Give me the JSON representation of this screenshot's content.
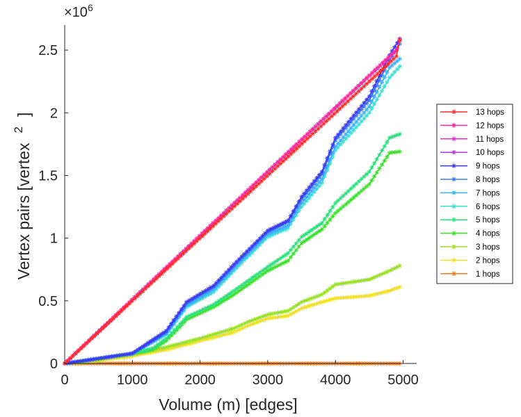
{
  "chart_data": {
    "type": "line",
    "title": "",
    "xlabel": "Volume (m) [edges]",
    "ylabel": "Vertex pairs [vertex",
    "ylabel_superscript": "2",
    "ylabel_close": "]",
    "y_multiplier": "×10",
    "y_multiplier_exponent": "6",
    "xlim": [
      0,
      5200
    ],
    "ylim": [
      0,
      2.7
    ],
    "xticks": [
      0,
      1000,
      2000,
      3000,
      4000,
      5000
    ],
    "xtick_labels": [
      "0",
      "1000",
      "2000",
      "3000",
      "4000",
      "5000"
    ],
    "yticks": [
      0,
      0.5,
      1,
      1.5,
      2,
      2.5
    ],
    "ytick_labels": [
      "0",
      "0.5",
      "1",
      "1.5",
      "2",
      "2.5"
    ],
    "grid": false,
    "legend_position": "outside-right",
    "marker": "asterisk",
    "series": [
      {
        "name": "13 hops",
        "color": "#ff2a2a",
        "points": [
          [
            0,
            0
          ],
          [
            4900,
            2.45
          ],
          [
            4950,
            2.58
          ]
        ]
      },
      {
        "name": "12 hops",
        "color": "#ff2a9a",
        "points": [
          [
            0,
            0
          ],
          [
            4900,
            2.5
          ],
          [
            4950,
            2.58
          ]
        ]
      },
      {
        "name": "11 hops",
        "color": "#ee2ad8",
        "points": [
          [
            0,
            0
          ],
          [
            4900,
            2.5
          ],
          [
            4950,
            2.58
          ]
        ]
      },
      {
        "name": "10 hops",
        "color": "#aa3af0",
        "points": [
          [
            0,
            0
          ],
          [
            4900,
            2.5
          ],
          [
            4950,
            2.58
          ]
        ]
      },
      {
        "name": "9 hops",
        "color": "#3a3af0",
        "points": [
          [
            0,
            0
          ],
          [
            500,
            0.04
          ],
          [
            1000,
            0.08
          ],
          [
            1500,
            0.26
          ],
          [
            1800,
            0.49
          ],
          [
            2200,
            0.62
          ],
          [
            2500,
            0.79
          ],
          [
            3000,
            1.06
          ],
          [
            3300,
            1.14
          ],
          [
            3500,
            1.33
          ],
          [
            3800,
            1.53
          ],
          [
            4000,
            1.8
          ],
          [
            4500,
            2.13
          ],
          [
            4800,
            2.46
          ],
          [
            4950,
            2.59
          ]
        ]
      },
      {
        "name": "8 hops",
        "color": "#3a7aff",
        "points": [
          [
            0,
            0
          ],
          [
            500,
            0.04
          ],
          [
            1000,
            0.08
          ],
          [
            1500,
            0.25
          ],
          [
            1800,
            0.48
          ],
          [
            2200,
            0.61
          ],
          [
            2500,
            0.78
          ],
          [
            3000,
            1.05
          ],
          [
            3300,
            1.13
          ],
          [
            3500,
            1.31
          ],
          [
            3800,
            1.51
          ],
          [
            4000,
            1.78
          ],
          [
            4500,
            2.1
          ],
          [
            4800,
            2.42
          ],
          [
            4950,
            2.55
          ]
        ]
      },
      {
        "name": "7 hops",
        "color": "#3ab2ff",
        "points": [
          [
            0,
            0
          ],
          [
            500,
            0.04
          ],
          [
            1000,
            0.08
          ],
          [
            1500,
            0.24
          ],
          [
            1800,
            0.46
          ],
          [
            2200,
            0.59
          ],
          [
            2500,
            0.76
          ],
          [
            3000,
            1.03
          ],
          [
            3300,
            1.1
          ],
          [
            3500,
            1.28
          ],
          [
            3800,
            1.47
          ],
          [
            4000,
            1.73
          ],
          [
            4500,
            2.05
          ],
          [
            4800,
            2.36
          ],
          [
            4950,
            2.43
          ]
        ]
      },
      {
        "name": "6 hops",
        "color": "#3ae0d0",
        "points": [
          [
            0,
            0
          ],
          [
            500,
            0.04
          ],
          [
            1000,
            0.08
          ],
          [
            1500,
            0.23
          ],
          [
            1800,
            0.45
          ],
          [
            2200,
            0.57
          ],
          [
            2500,
            0.74
          ],
          [
            3000,
            1.01
          ],
          [
            3300,
            1.08
          ],
          [
            3500,
            1.25
          ],
          [
            3800,
            1.44
          ],
          [
            4000,
            1.7
          ],
          [
            4500,
            2.0
          ],
          [
            4800,
            2.28
          ],
          [
            4950,
            2.37
          ]
        ]
      },
      {
        "name": "5 hops",
        "color": "#2ae07a",
        "points": [
          [
            0,
            0
          ],
          [
            500,
            0.04
          ],
          [
            1000,
            0.08
          ],
          [
            1300,
            0.12
          ],
          [
            1500,
            0.2
          ],
          [
            1700,
            0.31
          ],
          [
            1800,
            0.37
          ],
          [
            2200,
            0.47
          ],
          [
            2500,
            0.58
          ],
          [
            3000,
            0.77
          ],
          [
            3300,
            0.88
          ],
          [
            3500,
            1.01
          ],
          [
            3800,
            1.12
          ],
          [
            4000,
            1.28
          ],
          [
            4500,
            1.53
          ],
          [
            4800,
            1.8
          ],
          [
            4950,
            1.83
          ]
        ]
      },
      {
        "name": "4 hops",
        "color": "#3ae02a",
        "points": [
          [
            0,
            0
          ],
          [
            500,
            0.04
          ],
          [
            1000,
            0.08
          ],
          [
            1300,
            0.11
          ],
          [
            1500,
            0.18
          ],
          [
            1700,
            0.29
          ],
          [
            1800,
            0.35
          ],
          [
            2200,
            0.45
          ],
          [
            2500,
            0.55
          ],
          [
            3000,
            0.74
          ],
          [
            3300,
            0.82
          ],
          [
            3500,
            0.96
          ],
          [
            3800,
            1.07
          ],
          [
            4000,
            1.2
          ],
          [
            4500,
            1.43
          ],
          [
            4800,
            1.68
          ],
          [
            4950,
            1.69
          ]
        ]
      },
      {
        "name": "3 hops",
        "color": "#9ae02a",
        "points": [
          [
            0,
            0
          ],
          [
            300,
            0.01
          ],
          [
            600,
            0.04
          ],
          [
            1000,
            0.07
          ],
          [
            1500,
            0.13
          ],
          [
            2000,
            0.2
          ],
          [
            2500,
            0.28
          ],
          [
            2700,
            0.33
          ],
          [
            3000,
            0.39
          ],
          [
            3300,
            0.42
          ],
          [
            3500,
            0.49
          ],
          [
            3800,
            0.55
          ],
          [
            4000,
            0.63
          ],
          [
            4500,
            0.67
          ],
          [
            4800,
            0.74
          ],
          [
            4950,
            0.78
          ]
        ]
      },
      {
        "name": "2 hops",
        "color": "#f0e02a",
        "points": [
          [
            0,
            0
          ],
          [
            300,
            0.01
          ],
          [
            600,
            0.03
          ],
          [
            1000,
            0.06
          ],
          [
            1500,
            0.11
          ],
          [
            2000,
            0.18
          ],
          [
            2500,
            0.25
          ],
          [
            2700,
            0.3
          ],
          [
            3000,
            0.36
          ],
          [
            3300,
            0.38
          ],
          [
            3500,
            0.44
          ],
          [
            3800,
            0.49
          ],
          [
            4000,
            0.52
          ],
          [
            4500,
            0.54
          ],
          [
            4800,
            0.58
          ],
          [
            4950,
            0.61
          ]
        ]
      },
      {
        "name": "1 hops",
        "color": "#ff7a1a",
        "points": [
          [
            0,
            0
          ],
          [
            4950,
            0
          ]
        ]
      }
    ]
  }
}
